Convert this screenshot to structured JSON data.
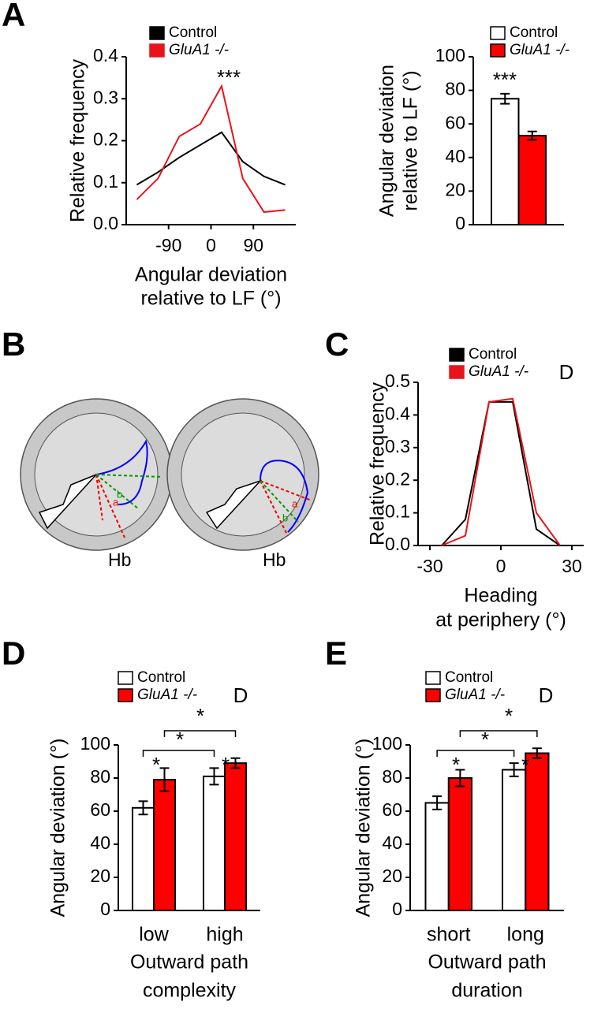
{
  "panel_labels": [
    "A",
    "B",
    "C",
    "D",
    "E"
  ],
  "diagram": {
    "labels": [
      "Hb",
      "Hb"
    ],
    "segment_labels": [
      "a",
      "b",
      "a",
      "b"
    ]
  },
  "chart_data": [
    {
      "type": "line",
      "ylabel": "Relative frequency",
      "xlabel": [
        "Angular deviation",
        "relative to LF (°)"
      ],
      "x": [
        -157.5,
        -112.5,
        -67.5,
        -22.5,
        22.5,
        67.5,
        112.5,
        157.5
      ],
      "xlim": [
        -180,
        180
      ],
      "xticks": [
        -90,
        0,
        90
      ],
      "ylim": [
        0,
        0.4
      ],
      "yticks": [
        {
          "value": 0,
          "label": "0.0"
        },
        0.1,
        0.2,
        0.3,
        0.4
      ],
      "series": [
        {
          "name": "Control",
          "color": "#000000",
          "values": [
            0.095,
            0.125,
            0.16,
            0.19,
            0.22,
            0.15,
            0.115,
            0.095
          ]
        },
        {
          "name": "GluA1 -/-",
          "color": "#e8141b",
          "values": [
            0.06,
            0.11,
            0.21,
            0.24,
            0.33,
            0.11,
            0.03,
            0.035
          ]
        }
      ],
      "annotations": [
        "***"
      ]
    },
    {
      "type": "bar",
      "ylabel": [
        "Angular deviation",
        "relative to LF (°)"
      ],
      "categories": [
        null
      ],
      "ylim": [
        0,
        100
      ],
      "yticks": [
        0,
        20,
        40,
        60,
        80,
        100
      ],
      "edgecolor": "#000000",
      "series": [
        {
          "name": "Control",
          "color": "#ffffff",
          "values": [
            75
          ],
          "errors": [
            3
          ]
        },
        {
          "name": "GluA1 -/-",
          "color": "#ff0000",
          "values": [
            53
          ],
          "errors": [
            2.5
          ]
        }
      ],
      "annotations": [
        "***"
      ]
    },
    {
      "type": "line",
      "ylabel": "Relative frequency",
      "xlabel": [
        "Heading",
        "at periphery (°)"
      ],
      "x": [
        -25,
        -15,
        -5,
        5,
        15,
        25
      ],
      "xlim": [
        -35,
        35
      ],
      "xticks": [
        -30,
        0,
        30
      ],
      "ylim": [
        0,
        0.5
      ],
      "yticks": [
        {
          "value": 0,
          "label": "0.0"
        },
        0.1,
        0.2,
        0.3,
        0.4,
        0.5
      ],
      "series": [
        {
          "name": "Control",
          "color": "#000000",
          "values": [
            0,
            0.08,
            0.44,
            0.44,
            0.05,
            0
          ]
        },
        {
          "name": "GluA1 -/-",
          "color": "#e8141b",
          "values": [
            0,
            0.03,
            0.44,
            0.45,
            0.1,
            0
          ]
        }
      ],
      "annotations": [
        "D"
      ]
    },
    {
      "type": "bar",
      "ylabel": "Angular deviation (°)",
      "xlabel": [
        "Outward path",
        "complexity"
      ],
      "categories": [
        "low",
        "high"
      ],
      "ylim": [
        0,
        100
      ],
      "yticks": [
        0,
        20,
        40,
        60,
        80,
        100
      ],
      "edgecolor": "#000000",
      "series": [
        {
          "name": "Control",
          "color": "#ffffff",
          "values": [
            62,
            81
          ],
          "errors": [
            4,
            5
          ]
        },
        {
          "name": "GluA1 -/-",
          "color": "#ff0000",
          "values": [
            79,
            89
          ],
          "errors": [
            7,
            3
          ]
        }
      ],
      "annotations": [
        "*",
        "*",
        "*",
        "*",
        "D"
      ]
    },
    {
      "type": "bar",
      "ylabel": "Angular deviation (°)",
      "xlabel": [
        "Outward path",
        "duration"
      ],
      "categories": [
        "short",
        "long"
      ],
      "ylim": [
        0,
        100
      ],
      "yticks": [
        0,
        20,
        40,
        60,
        80,
        100
      ],
      "edgecolor": "#000000",
      "series": [
        {
          "name": "Control",
          "color": "#ffffff",
          "values": [
            65,
            85
          ],
          "errors": [
            4,
            4
          ]
        },
        {
          "name": "GluA1 -/-",
          "color": "#ff0000",
          "values": [
            80,
            95
          ],
          "errors": [
            5,
            3
          ]
        }
      ],
      "annotations": [
        "*",
        "*",
        "*",
        "*",
        "D"
      ]
    }
  ]
}
